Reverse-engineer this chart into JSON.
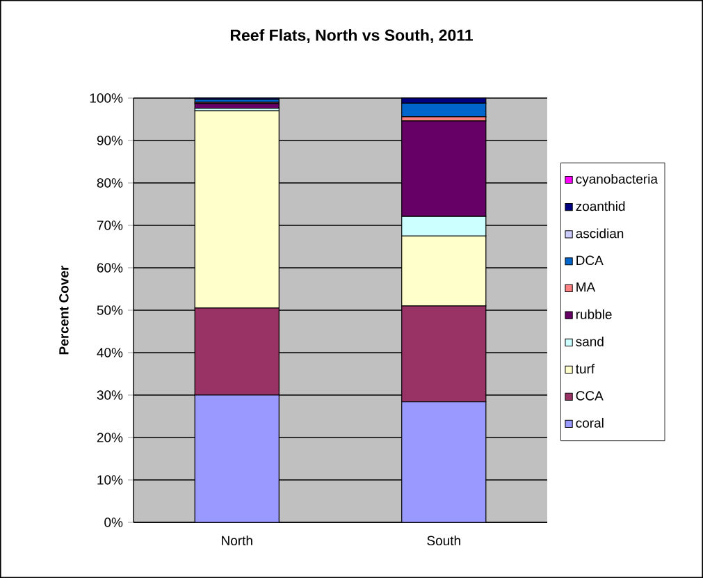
{
  "chart_data": {
    "type": "bar",
    "title": "Reef Flats, North vs South, 2011",
    "ylabel": "Percent Cover",
    "stacked": true,
    "categories": [
      "North",
      "South"
    ],
    "series": [
      {
        "name": "coral",
        "color": "#9999ff",
        "values": [
          30,
          28.4
        ]
      },
      {
        "name": "CCA",
        "color": "#993366",
        "values": [
          20.5,
          22.6
        ]
      },
      {
        "name": "turf",
        "color": "#ffffcc",
        "values": [
          46.5,
          16.5
        ]
      },
      {
        "name": "sand",
        "color": "#ccffff",
        "values": [
          0.6,
          4.6
        ]
      },
      {
        "name": "rubble",
        "color": "#660066",
        "values": [
          1.1,
          22.5
        ]
      },
      {
        "name": "MA",
        "color": "#ff8080",
        "values": [
          0.3,
          1.0
        ]
      },
      {
        "name": "DCA",
        "color": "#0066cc",
        "values": [
          0.7,
          3.2
        ]
      },
      {
        "name": "ascidian",
        "color": "#ccccff",
        "values": [
          0,
          0
        ]
      },
      {
        "name": "zoanthid",
        "color": "#000080",
        "values": [
          0.3,
          1.2
        ]
      },
      {
        "name": "cyanobacteria",
        "color": "#ff00ff",
        "values": [
          0,
          0
        ]
      }
    ],
    "ylim": [
      0,
      100
    ],
    "yticks": [
      {
        "value": 0,
        "label": "0%"
      },
      {
        "value": 10,
        "label": "10%"
      },
      {
        "value": 20,
        "label": "20%"
      },
      {
        "value": 30,
        "label": "30%"
      },
      {
        "value": 40,
        "label": "40%"
      },
      {
        "value": 50,
        "label": "50%"
      },
      {
        "value": 60,
        "label": "60%"
      },
      {
        "value": 70,
        "label": "70%"
      },
      {
        "value": 80,
        "label": "80%"
      },
      {
        "value": 90,
        "label": "90%"
      },
      {
        "value": 100,
        "label": "100%"
      }
    ],
    "grid": "y",
    "legend": "right"
  }
}
